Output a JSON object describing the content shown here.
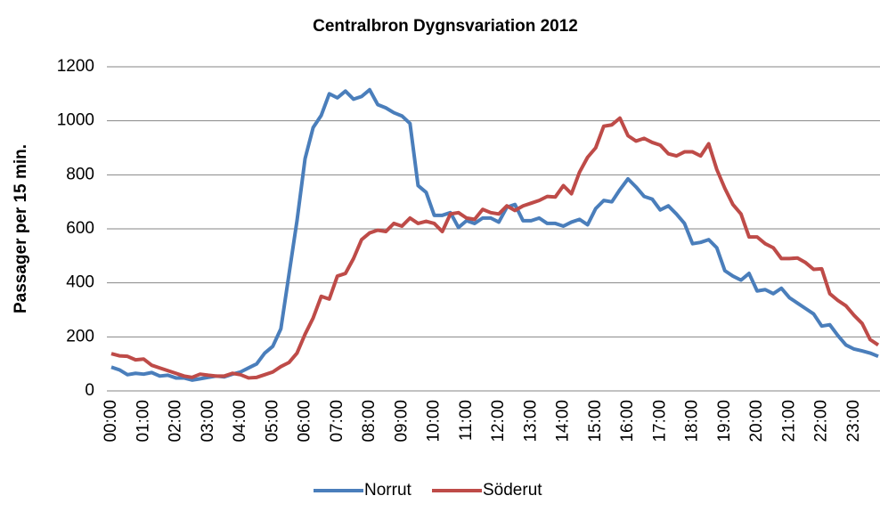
{
  "chart_data": {
    "type": "line",
    "title": "Centralbron Dygnsvariation 2012",
    "y_label": "Passager per 15 min.",
    "categories": [
      "00:00",
      null,
      null,
      null,
      "01:00",
      null,
      null,
      null,
      "02:00",
      null,
      null,
      null,
      "03:00",
      null,
      null,
      null,
      "04:00",
      null,
      null,
      null,
      "05:00",
      null,
      null,
      null,
      "06:00",
      null,
      null,
      null,
      "07:00",
      null,
      null,
      null,
      "08:00",
      null,
      null,
      null,
      "09:00",
      null,
      null,
      null,
      "10:00",
      null,
      null,
      null,
      "11:00",
      null,
      null,
      null,
      "12:00",
      null,
      null,
      null,
      "13:00",
      null,
      null,
      null,
      "14:00",
      null,
      null,
      null,
      "15:00",
      null,
      null,
      null,
      "16:00",
      null,
      null,
      null,
      "17:00",
      null,
      null,
      null,
      "18:00",
      null,
      null,
      null,
      "19:00",
      null,
      null,
      null,
      "20:00",
      null,
      null,
      null,
      "21:00",
      null,
      null,
      null,
      "22:00",
      null,
      null,
      null,
      "23:00",
      null,
      null,
      null
    ],
    "series": [
      {
        "name": "Norrut",
        "color": "#4a7ebb",
        "values": [
          88,
          78,
          60,
          65,
          62,
          68,
          55,
          58,
          48,
          48,
          40,
          45,
          50,
          55,
          52,
          62,
          70,
          85,
          100,
          140,
          165,
          230,
          430,
          630,
          860,
          975,
          1020,
          1100,
          1085,
          1110,
          1080,
          1090,
          1115,
          1060,
          1048,
          1030,
          1018,
          990,
          760,
          735,
          650,
          650,
          660,
          605,
          630,
          620,
          640,
          640,
          625,
          680,
          690,
          630,
          630,
          640,
          620,
          620,
          610,
          625,
          635,
          615,
          675,
          705,
          700,
          745,
          785,
          755,
          720,
          710,
          670,
          685,
          655,
          620,
          545,
          550,
          560,
          530,
          445,
          425,
          410,
          435,
          370,
          375,
          360,
          380,
          345,
          325,
          305,
          285,
          240,
          245,
          205,
          170,
          155,
          148,
          140,
          128
        ]
      },
      {
        "name": "Söderut",
        "color": "#be4b48",
        "values": [
          138,
          130,
          128,
          115,
          118,
          95,
          85,
          75,
          65,
          55,
          50,
          62,
          58,
          55,
          55,
          65,
          60,
          48,
          50,
          60,
          70,
          90,
          105,
          140,
          210,
          270,
          350,
          340,
          425,
          435,
          490,
          560,
          585,
          595,
          590,
          620,
          610,
          640,
          620,
          628,
          620,
          590,
          655,
          660,
          640,
          635,
          672,
          660,
          655,
          685,
          668,
          685,
          695,
          705,
          720,
          718,
          760,
          730,
          810,
          865,
          900,
          980,
          985,
          1010,
          945,
          925,
          935,
          920,
          910,
          878,
          870,
          885,
          885,
          870,
          915,
          820,
          750,
          690,
          655,
          570,
          570,
          545,
          530,
          490,
          490,
          492,
          475,
          450,
          452,
          360,
          335,
          315,
          280,
          250,
          190,
          170
        ]
      }
    ],
    "ylim": [
      0,
      1200
    ],
    "yticks": [
      0,
      200,
      400,
      600,
      800,
      1000,
      1200
    ],
    "grid": true
  }
}
